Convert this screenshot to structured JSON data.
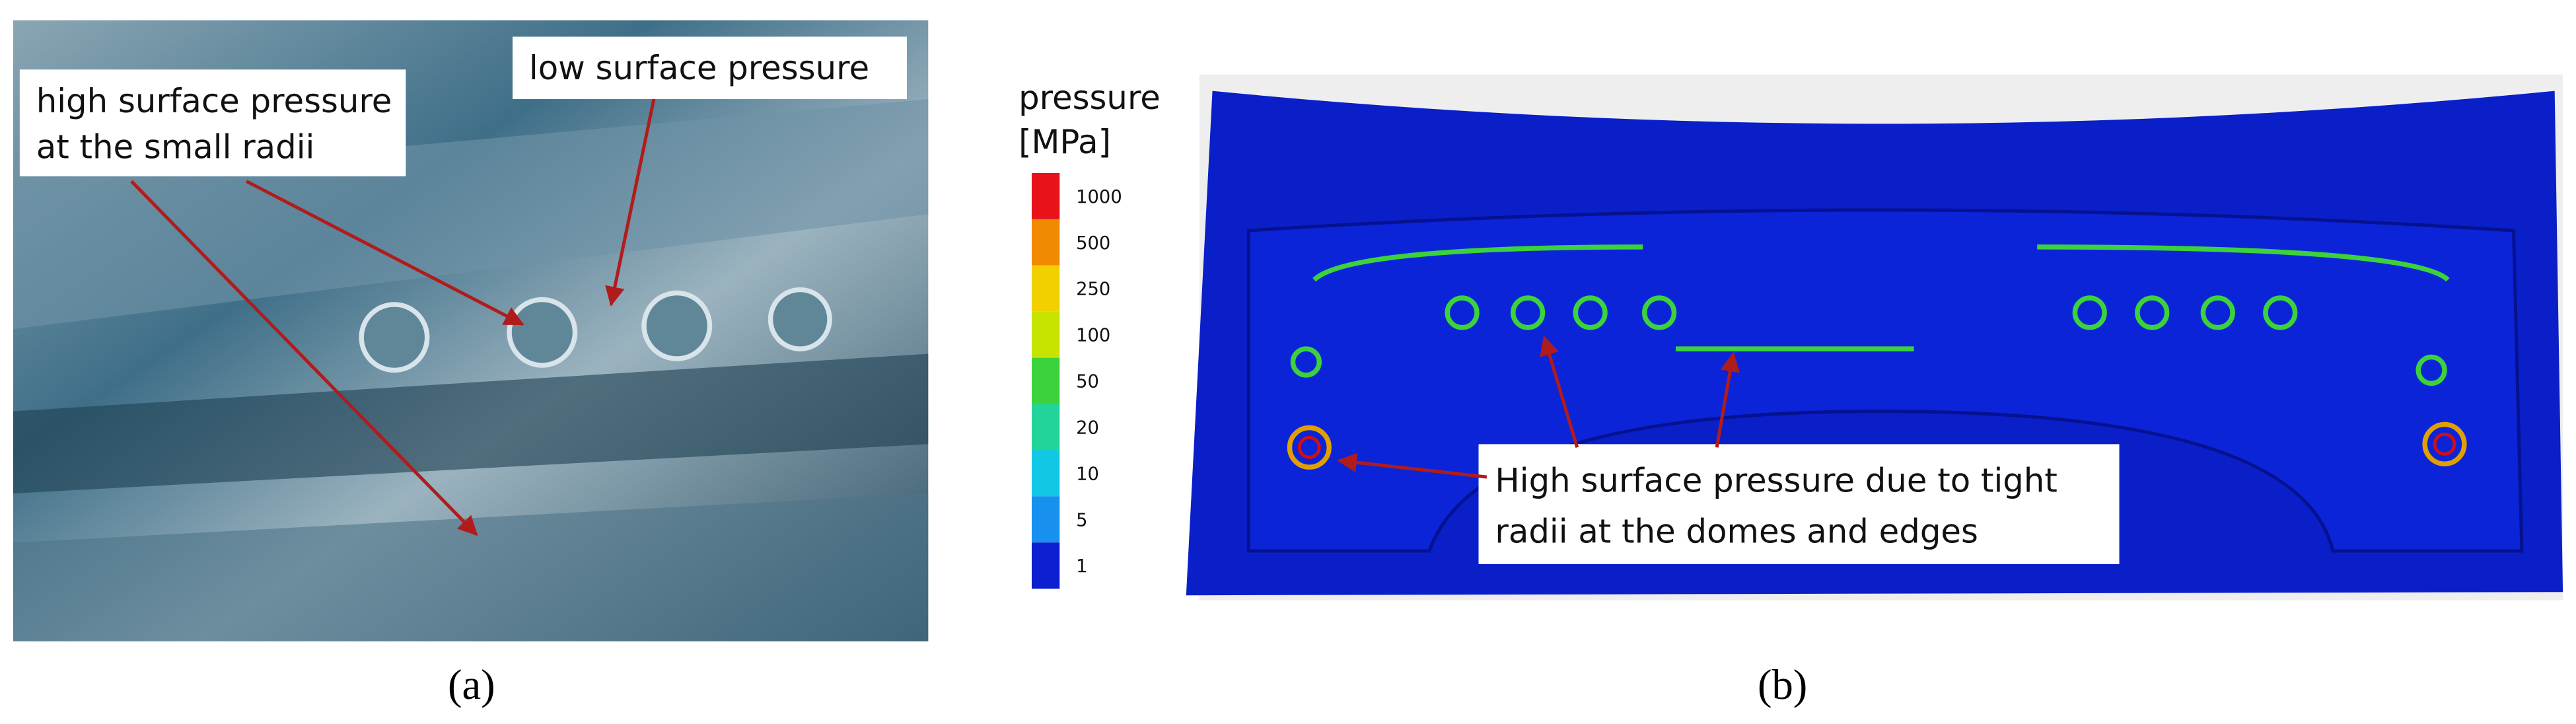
{
  "panel_a": {
    "callouts": [
      {
        "lines": [
          "high surface pressure",
          "at the small radii"
        ]
      },
      {
        "lines": [
          "low surface pressure"
        ]
      }
    ],
    "caption": "(a)"
  },
  "panel_b": {
    "legend": {
      "title": [
        "pressure",
        "[MPa]"
      ],
      "levels": [
        1000,
        500,
        250,
        100,
        50,
        20,
        10,
        5,
        1
      ]
    },
    "callout": {
      "lines": [
        "High surface pressure due to tight",
        "radii at the domes and edges"
      ]
    },
    "caption": "(b)"
  }
}
